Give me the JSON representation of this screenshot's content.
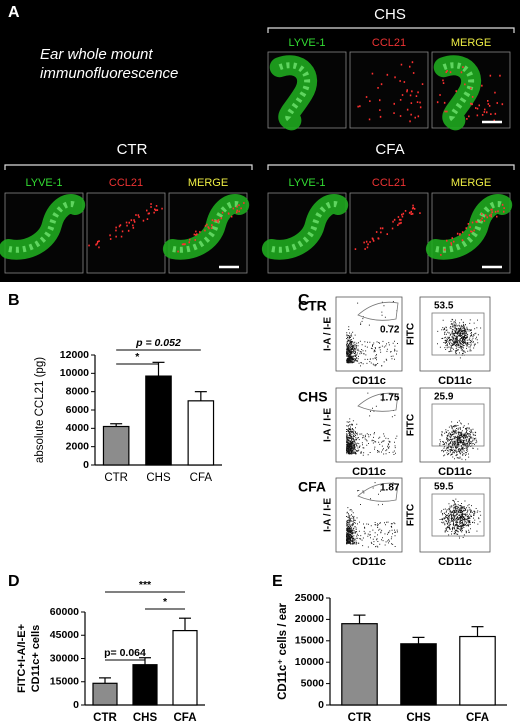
{
  "panel_A": {
    "label": "A",
    "caption": [
      "Ear whole mount",
      "immunofluorescence"
    ],
    "groups": [
      {
        "title": "CHS",
        "channels": [
          "LYVE-1",
          "CCL21",
          "MERGE"
        ]
      },
      {
        "title": "CTR",
        "channels": [
          "LYVE-1",
          "CCL21",
          "MERGE"
        ]
      },
      {
        "title": "CFA",
        "channels": [
          "LYVE-1",
          "CCL21",
          "MERGE"
        ]
      }
    ]
  },
  "panel_C": {
    "label": "C",
    "x_axis": "CD11c",
    "y_axis_left": "I-A / I-E",
    "y_axis_right": "FITC",
    "rows": [
      {
        "name": "CTR",
        "gate_left": 0.72,
        "gate_right": 53.5
      },
      {
        "name": "CHS",
        "gate_left": 1.75,
        "gate_right": 25.9
      },
      {
        "name": "CFA",
        "gate_left": 1.87,
        "gate_right": 59.5
      }
    ]
  },
  "chart_data": [
    {
      "type": "bar",
      "label": "B",
      "y_label": "absolute CCL21 (pg)",
      "categories": [
        "CTR",
        "CHS",
        "CFA"
      ],
      "values": [
        4200,
        9700,
        7000
      ],
      "errors": [
        300,
        1500,
        1000
      ],
      "colors": [
        "#8c8c8c",
        "#000000",
        "#ffffff"
      ],
      "ylim": [
        0,
        12000
      ],
      "yticks": [
        0,
        2000,
        4000,
        6000,
        8000,
        10000,
        12000
      ],
      "annotations": [
        "p = 0.052",
        "*"
      ]
    },
    {
      "type": "bar",
      "label": "D",
      "y_label": [
        "FITC+I-A/I-E+",
        "CD11c+ cells"
      ],
      "categories": [
        "CTR",
        "CHS",
        "CFA"
      ],
      "values": [
        14000,
        26000,
        48000
      ],
      "errors": [
        3500,
        4500,
        8000
      ],
      "colors": [
        "#8c8c8c",
        "#000000",
        "#ffffff"
      ],
      "ylim": [
        0,
        60000
      ],
      "yticks": [
        0,
        15000,
        30000,
        45000,
        60000
      ],
      "annotations": [
        "***",
        "*",
        "p= 0.064"
      ]
    },
    {
      "type": "bar",
      "label": "E",
      "y_label": "CD11c⁺ cells / ear",
      "categories": [
        "CTR",
        "CHS",
        "CFA"
      ],
      "values": [
        19000,
        14300,
        16000
      ],
      "errors": [
        2000,
        1500,
        2300
      ],
      "colors": [
        "#8c8c8c",
        "#000000",
        "#ffffff"
      ],
      "ylim": [
        0,
        25000
      ],
      "yticks": [
        0,
        5000,
        10000,
        15000,
        20000,
        25000
      ],
      "annotations": []
    }
  ]
}
